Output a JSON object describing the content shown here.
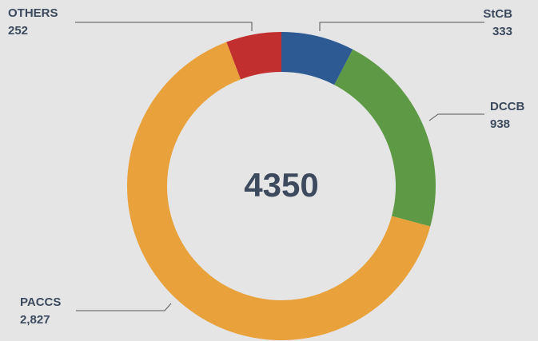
{
  "chart_data": {
    "type": "donut",
    "categories": [
      "StCB",
      "DCCB",
      "PACCS",
      "OTHERS"
    ],
    "values": [
      333,
      938,
      2827,
      252
    ],
    "value_labels": [
      "333",
      "938",
      "2,827",
      "252"
    ],
    "colors": [
      "#2e5a93",
      "#5e9a45",
      "#e9a23b",
      "#c1302f"
    ],
    "total": 4350
  }
}
